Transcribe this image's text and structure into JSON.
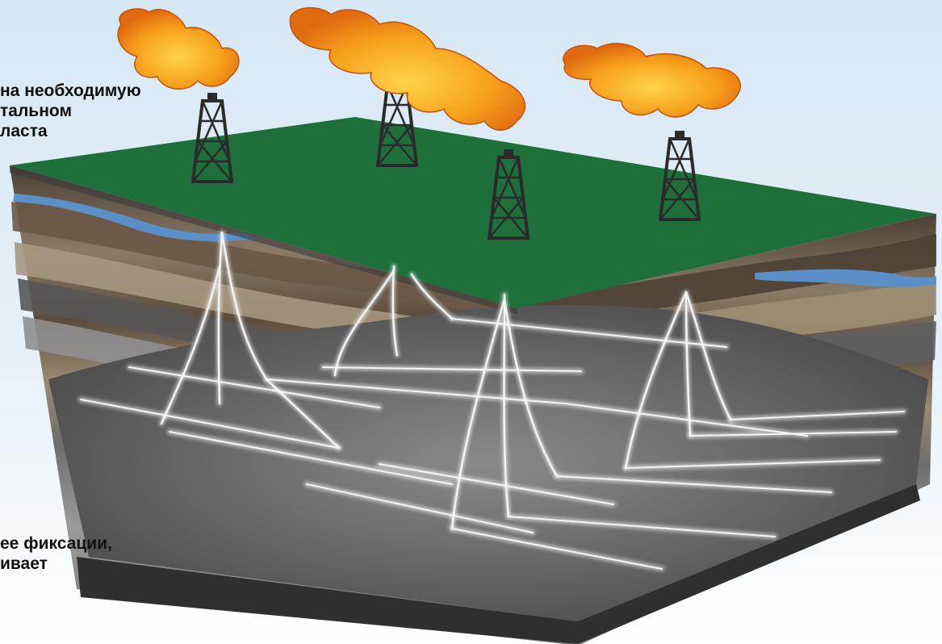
{
  "captions": {
    "top": [
      "на необходимую",
      "тальном",
      "ласта"
    ],
    "bottom": [
      "ее фиксации,",
      "ивает"
    ]
  },
  "colors": {
    "sky": "#d6e8f5",
    "surface": "#1e6f3a",
    "water": "#5b8fc8",
    "flame": "#f59a1a",
    "wellbore": "#f2f2f2",
    "reservoir": "#5a5a5a"
  },
  "icons": [
    "drilling-rig-icon",
    "gas-flare-icon"
  ]
}
